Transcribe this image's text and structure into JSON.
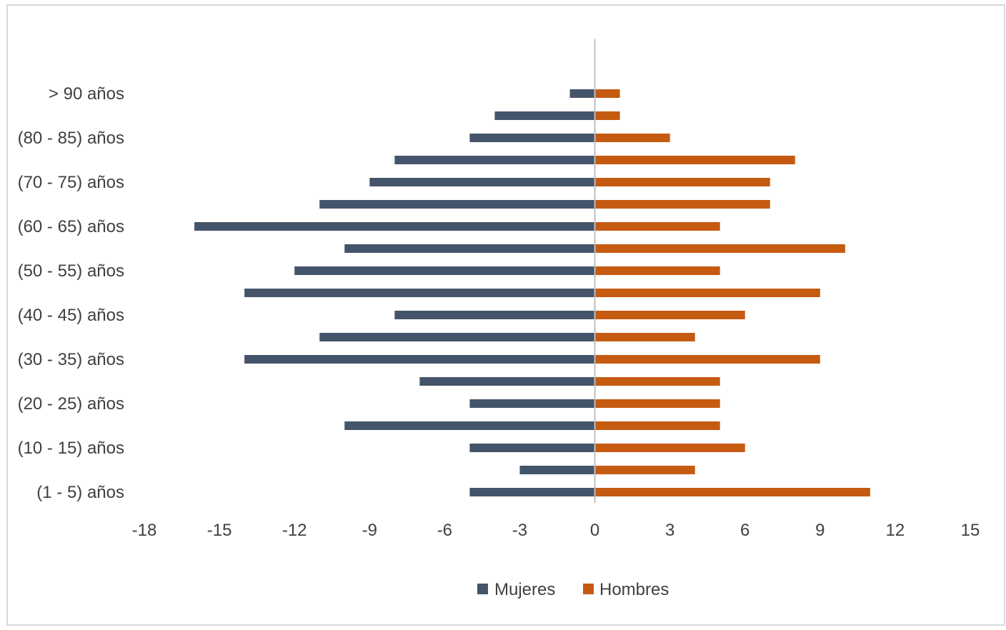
{
  "chart_data": {
    "type": "bar",
    "orientation": "horizontal",
    "categories": [
      "(1 - 5) años",
      "",
      "(10 - 15) años",
      "",
      "(20 - 25) años",
      "",
      "(30 - 35) años",
      "",
      "(40 - 45) años",
      "",
      "(50 - 55) años",
      "",
      "(60 - 65) años",
      "",
      "(70 - 75) años",
      "",
      "(80 - 85) años",
      "",
      "> 90 años"
    ],
    "series": [
      {
        "name": "Mujeres",
        "color": "#44546A",
        "values": [
          -5,
          -3,
          -5,
          -10,
          -5,
          -7,
          -14,
          -11,
          -8,
          -14,
          -12,
          -10,
          -16,
          -11,
          -9,
          -8,
          -5,
          -4,
          -1
        ]
      },
      {
        "name": "Hombres",
        "color": "#C55A11",
        "values": [
          11,
          4,
          6,
          5,
          5,
          5,
          9,
          4,
          6,
          9,
          5,
          10,
          5,
          7,
          7,
          8,
          3,
          1,
          1
        ]
      }
    ],
    "xlim": [
      -18,
      15
    ],
    "xticks": [
      -18,
      -15,
      -12,
      -9,
      -6,
      -3,
      0,
      3,
      6,
      9,
      12,
      15
    ],
    "title": "",
    "xlabel": "",
    "ylabel": "",
    "grid": false,
    "legend_position": "bottom"
  }
}
